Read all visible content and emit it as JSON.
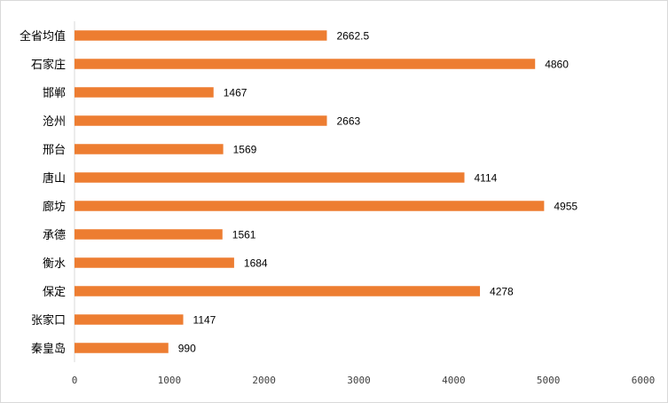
{
  "chart_data": {
    "type": "bar",
    "orientation": "horizontal",
    "categories": [
      "全省均值",
      "石家庄",
      "邯郸",
      "沧州",
      "邢台",
      "唐山",
      "廊坊",
      "承德",
      "衡水",
      "保定",
      "张家口",
      "秦皇岛"
    ],
    "values": [
      2662.5,
      4860,
      1467,
      2663,
      1569,
      4114,
      4955,
      1561,
      1684,
      4278,
      1147,
      990
    ],
    "value_labels": [
      "2662.5",
      "4860",
      "1467",
      "2663",
      "1569",
      "4114",
      "4955",
      "1561",
      "1684",
      "4278",
      "1147",
      "990"
    ],
    "xlim": [
      0,
      6000
    ],
    "x_ticks": [
      "0",
      "1000",
      "2000",
      "3000",
      "4000",
      "5000",
      "6000"
    ],
    "title": "",
    "xlabel": "",
    "ylabel": "",
    "grid": false,
    "legend": "none",
    "bar_color": "#ED7D31",
    "axis_color": "#d9d9d9"
  }
}
